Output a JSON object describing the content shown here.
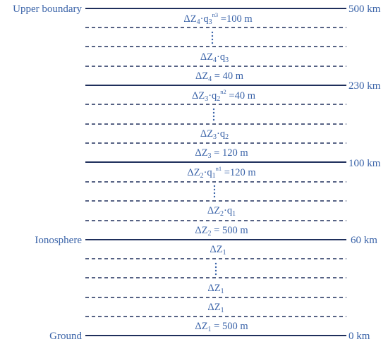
{
  "colors": {
    "line": "#1f2f5c",
    "text": "#3a63a8"
  },
  "boundaries": [
    {
      "name": "upper-boundary",
      "left_label": "Upper boundary",
      "right_label": "500 km"
    },
    {
      "name": "boundary-230",
      "left_label": "",
      "right_label": "230 km"
    },
    {
      "name": "boundary-100",
      "left_label": "",
      "right_label": "100 km"
    },
    {
      "name": "ionosphere",
      "left_label": "Ionosphere",
      "right_label": "60 km"
    },
    {
      "name": "ground",
      "left_label": "Ground",
      "right_label": "0 km"
    }
  ],
  "labels": {
    "z4_top": {
      "delta": "Δ",
      "var": "Z",
      "idx": "4",
      "dot": "·",
      "q": "q",
      "qidx": "3",
      "exp": "n3",
      "tail": " =100 m"
    },
    "z4_q": {
      "delta": "Δ",
      "var": "Z",
      "idx": "4",
      "dot": "·",
      "q": "q",
      "qidx": "3"
    },
    "z4_base": {
      "delta": "Δ",
      "var": "Z",
      "idx": "4",
      "tail": " = 40 m"
    },
    "z3_top": {
      "delta": "Δ",
      "var": "Z",
      "idx": "3",
      "dot": "·",
      "q": "q",
      "qidx": "2",
      "exp": "n2",
      "tail": " =40 m"
    },
    "z3_q": {
      "delta": "Δ",
      "var": "Z",
      "idx": "3",
      "dot": "·",
      "q": "q",
      "qidx": "2"
    },
    "z3_base": {
      "delta": "Δ",
      "var": "Z",
      "idx": "3",
      "tail": " = 120 m"
    },
    "z2_top": {
      "delta": "Δ",
      "var": "Z",
      "idx": "2",
      "dot": "·",
      "q": "q",
      "qidx": "1",
      "exp": "n1",
      "tail": " =120 m"
    },
    "z2_q": {
      "delta": "Δ",
      "var": "Z",
      "idx": "2",
      "dot": "·",
      "q": "q",
      "qidx": "1"
    },
    "z2_base": {
      "delta": "Δ",
      "var": "Z",
      "idx": "2",
      "tail": " = 500 m"
    },
    "z1_a": {
      "delta": "Δ",
      "var": "Z",
      "idx": "1"
    },
    "z1_b": {
      "delta": "Δ",
      "var": "Z",
      "idx": "1"
    },
    "z1_c": {
      "delta": "Δ",
      "var": "Z",
      "idx": "1"
    },
    "z1_base": {
      "delta": "Δ",
      "var": "Z",
      "idx": "1",
      "tail": " = 500 m"
    }
  }
}
